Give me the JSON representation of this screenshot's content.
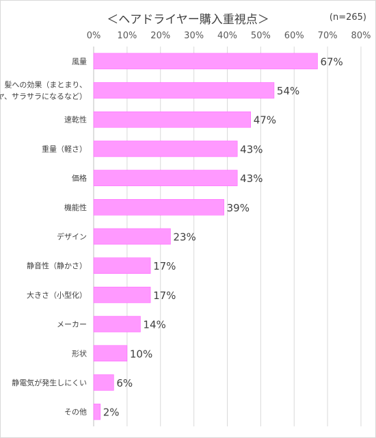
{
  "chart_data": {
    "type": "bar",
    "orientation": "horizontal",
    "title": "＜ヘアドライヤー購入重視点＞",
    "note": "(n=265)",
    "categories": [
      [
        "風量"
      ],
      [
        "髪への効果（まとまり、",
        "ツヤ、サラサラになるなど）"
      ],
      [
        "速乾性"
      ],
      [
        "重量（軽さ）"
      ],
      [
        "価格"
      ],
      [
        "機能性"
      ],
      [
        "デザイン"
      ],
      [
        "静音性（静かさ）"
      ],
      [
        "大きさ（小型化）"
      ],
      [
        "メーカー"
      ],
      [
        "形状"
      ],
      [
        "静電気が発生しにくい"
      ],
      [
        "その他"
      ]
    ],
    "values": [
      67,
      54,
      47,
      43,
      43,
      39,
      23,
      17,
      17,
      14,
      10,
      6,
      2
    ],
    "value_labels": [
      "67%",
      "54%",
      "47%",
      "43%",
      "43%",
      "39%",
      "23%",
      "17%",
      "17%",
      "14%",
      "10%",
      "6%",
      "2%"
    ],
    "xlim": [
      0,
      80
    ],
    "xticks": [
      "0%",
      "10%",
      "20%",
      "30%",
      "40%",
      "50%",
      "60%",
      "70%",
      "80%"
    ],
    "grid": true,
    "bar_color": "#ff99ff",
    "bar_edge_color": "#ff66ff",
    "grid_color": "#d9d9d9"
  }
}
